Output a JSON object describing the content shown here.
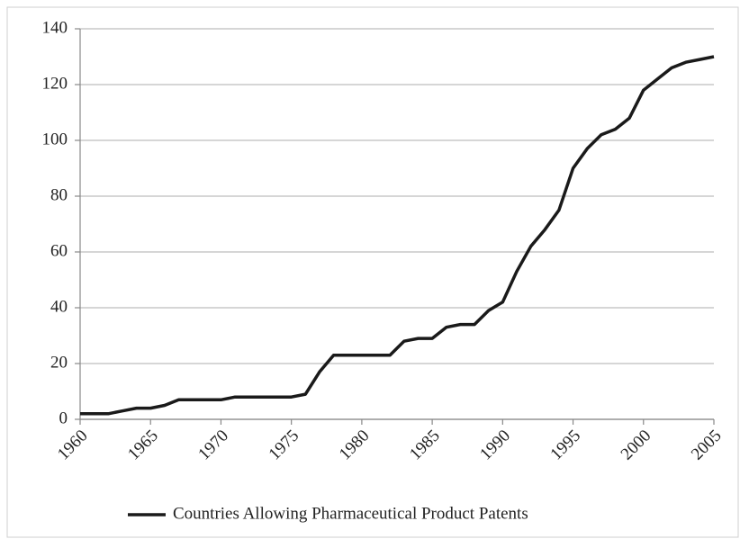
{
  "chart_data": {
    "type": "line",
    "x": [
      1960,
      1961,
      1962,
      1963,
      1964,
      1965,
      1966,
      1967,
      1968,
      1969,
      1970,
      1971,
      1972,
      1973,
      1974,
      1975,
      1976,
      1977,
      1978,
      1979,
      1980,
      1981,
      1982,
      1983,
      1984,
      1985,
      1986,
      1987,
      1988,
      1989,
      1990,
      1991,
      1992,
      1993,
      1994,
      1995,
      1996,
      1997,
      1998,
      1999,
      2000,
      2001,
      2002,
      2003,
      2004,
      2005
    ],
    "series": [
      {
        "name": "Countries Allowing Pharmaceutical Product Patents",
        "color": "#1a1a1a",
        "values": [
          2,
          2,
          2,
          3,
          4,
          4,
          5,
          7,
          7,
          7,
          7,
          8,
          8,
          8,
          8,
          8,
          9,
          17,
          23,
          23,
          23,
          23,
          23,
          28,
          29,
          29,
          33,
          34,
          34,
          39,
          42,
          53,
          62,
          68,
          75,
          90,
          97,
          102,
          104,
          108,
          118,
          122,
          126,
          128,
          129,
          130
        ]
      }
    ],
    "xlim": [
      1960,
      2005
    ],
    "xticks": [
      1960,
      1965,
      1970,
      1975,
      1980,
      1985,
      1990,
      1995,
      2000,
      2005
    ],
    "ylim": [
      0,
      140
    ],
    "yticks": [
      0,
      20,
      40,
      60,
      80,
      100,
      120,
      140
    ],
    "grid": true,
    "legend": "bottom"
  }
}
